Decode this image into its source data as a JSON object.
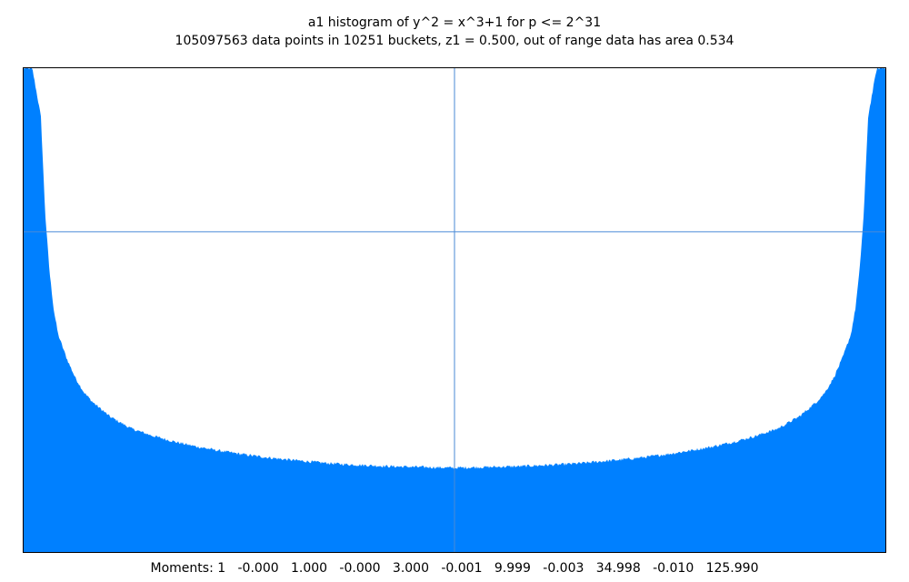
{
  "title": "a1 histogram of y^2 = x^3+1 for p <= 2^31",
  "subtitle": "105097563 data points in 10251 buckets, z1 = 0.500, out of range data has area 0.534",
  "moments_label": "Moments:",
  "moments": [
    "1",
    "-0.000",
    "1.000",
    "-0.000",
    "3.000",
    "-0.001",
    "9.999",
    "-0.003",
    "34.998",
    "-0.010",
    "125.990"
  ],
  "colors": {
    "fill": "#0080ff",
    "reference_line": "#4a8ad6",
    "frame": "#000000"
  },
  "chart_data": {
    "type": "area",
    "title": "a1 histogram of y^2 = x^3+1 for p <= 2^31",
    "subtitle": "105097563 data points in 10251 buckets, z1 = 0.500, out of range data has area 0.534",
    "xlim": [
      -1,
      1
    ],
    "ylim": [
      0,
      1
    ],
    "reference_lines": {
      "x": 0.0,
      "y": 0.662
    },
    "grid": false,
    "series": [
      {
        "x": [
          -1.0,
          -0.98,
          -0.96,
          -0.95,
          -0.94,
          -0.93,
          -0.92,
          -0.9,
          -0.88,
          -0.86,
          -0.84,
          -0.82,
          -0.8,
          -0.75,
          -0.7,
          -0.65,
          -0.6,
          -0.55,
          -0.5,
          -0.45,
          -0.4,
          -0.35,
          -0.3,
          -0.25,
          -0.2,
          -0.15,
          -0.1,
          -0.05,
          0.0,
          0.05,
          0.1,
          0.15,
          0.2,
          0.25,
          0.3,
          0.35,
          0.4,
          0.45,
          0.5,
          0.55,
          0.6,
          0.65,
          0.7,
          0.75,
          0.8,
          0.82,
          0.84,
          0.86,
          0.88,
          0.9,
          0.92,
          0.93,
          0.94,
          0.95,
          0.96,
          0.98,
          1.0
        ],
        "values": [
          1.0,
          1.0,
          0.9,
          0.7,
          0.58,
          0.5,
          0.45,
          0.4,
          0.36,
          0.33,
          0.31,
          0.295,
          0.28,
          0.255,
          0.24,
          0.228,
          0.218,
          0.21,
          0.203,
          0.197,
          0.192,
          0.188,
          0.184,
          0.181,
          0.179,
          0.177,
          0.176,
          0.175,
          0.174,
          0.175,
          0.176,
          0.177,
          0.179,
          0.181,
          0.184,
          0.188,
          0.192,
          0.197,
          0.203,
          0.21,
          0.218,
          0.228,
          0.24,
          0.255,
          0.28,
          0.295,
          0.31,
          0.33,
          0.36,
          0.4,
          0.45,
          0.5,
          0.58,
          0.7,
          0.9,
          1.0,
          1.0
        ]
      }
    ]
  }
}
